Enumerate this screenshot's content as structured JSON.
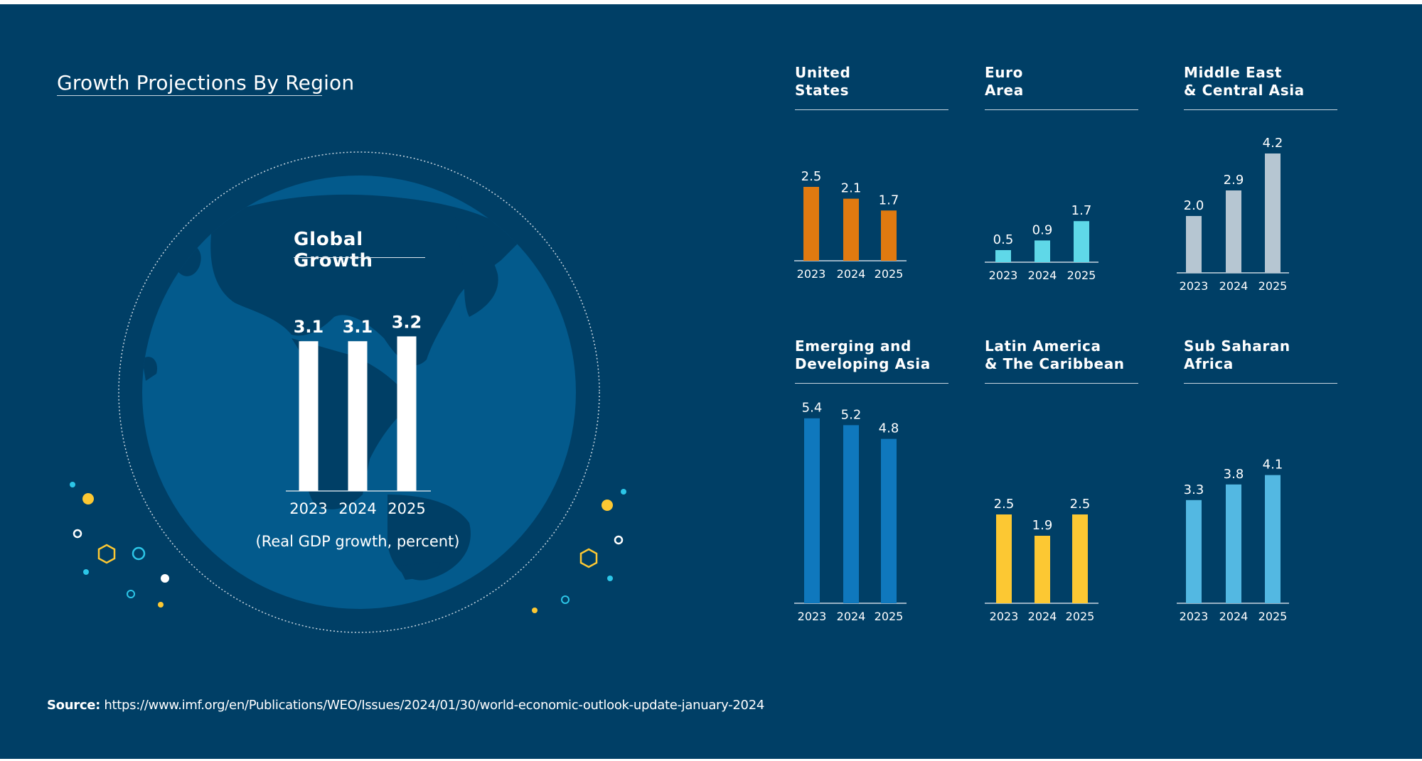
{
  "title": "Growth Projections By Region",
  "source_label": "Source:",
  "source_url": "https://www.imf.org/en/Publications/WEO/Issues/2024/01/30/world-economic-outlook-update-january-2024",
  "global": {
    "title": "Global Growth",
    "unit_note": "(Real GDP growth, percent)"
  },
  "colors": {
    "background": "#003f66",
    "globe": "#035a8c",
    "global_bars": "#ffffff",
    "united_states": "#e07a10",
    "euro_area": "#5fd8e8",
    "middle_east_central_asia": "#b6c6d2",
    "emerging_developing_asia": "#0f78bd",
    "latin_america_caribbean": "#fcc833",
    "sub_saharan_africa": "#53b8e2"
  },
  "chart_data": [
    {
      "type": "bar",
      "title": "Global Growth",
      "categories": [
        "2023",
        "2024",
        "2025"
      ],
      "values": [
        3.1,
        3.1,
        3.2
      ],
      "value_labels": [
        "3.1",
        "3.1",
        "3.2"
      ],
      "ylim": [
        0,
        3.2
      ]
    },
    {
      "type": "bar",
      "title": "United\nStates",
      "categories": [
        "2023",
        "2024",
        "2025"
      ],
      "values": [
        2.5,
        2.1,
        1.7
      ],
      "value_labels": [
        "2.5",
        "2.1",
        "1.7"
      ]
    },
    {
      "type": "bar",
      "title": "Euro\nArea",
      "categories": [
        "2023",
        "2024",
        "2025"
      ],
      "values": [
        0.5,
        0.9,
        1.7
      ],
      "value_labels": [
        "0.5",
        "0.9",
        "1.7"
      ]
    },
    {
      "type": "bar",
      "title": "Middle East\n& Central Asia",
      "categories": [
        "2023",
        "2024",
        "2025"
      ],
      "values": [
        2.0,
        2.9,
        4.2
      ],
      "value_labels": [
        "2.0",
        "2.9",
        "4.2"
      ]
    },
    {
      "type": "bar",
      "title": "Emerging and\nDeveloping Asia",
      "categories": [
        "2023",
        "2024",
        "2025"
      ],
      "values": [
        5.4,
        5.2,
        4.8
      ],
      "value_labels": [
        "5.4",
        "5.2",
        "4.8"
      ]
    },
    {
      "type": "bar",
      "title": "Latin America\n& The Caribbean",
      "categories": [
        "2023",
        "2024",
        "2025"
      ],
      "values": [
        2.5,
        1.9,
        2.5
      ],
      "value_labels": [
        "2.5",
        "1.9",
        "2.5"
      ]
    },
    {
      "type": "bar",
      "title": "Sub Saharan\nAfrica",
      "categories": [
        "2023",
        "2024",
        "2025"
      ],
      "values": [
        3.3,
        3.8,
        4.1
      ],
      "value_labels": [
        "3.3",
        "3.8",
        "4.1"
      ]
    }
  ]
}
